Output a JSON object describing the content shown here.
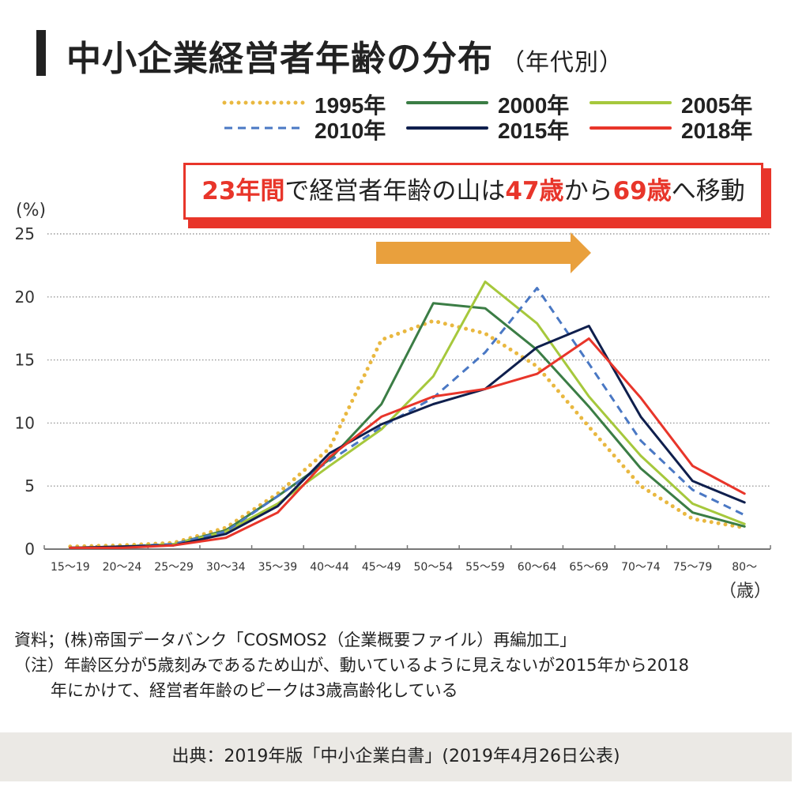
{
  "header": {
    "title": "中小企業経営者年齢の分布",
    "subtitle": "（年代別）"
  },
  "callout": {
    "parts": [
      {
        "text": "23年間",
        "highlight": true
      },
      {
        "text": "で経営者年齢の山は",
        "highlight": false
      },
      {
        "text": "47歳",
        "highlight": true
      },
      {
        "text": "から",
        "highlight": false
      },
      {
        "text": "69歳",
        "highlight": true
      },
      {
        "text": "へ移動",
        "highlight": false
      }
    ],
    "arrow_icon": "right-arrow-icon",
    "arrow_color": "#e9a03d",
    "border_color": "#e8352a"
  },
  "notes": {
    "source_line": "資料；(株)帝国データバンク「COSMOS2（企業概要ファイル）再編加工」",
    "note_line1": "（注）年齢区分が5歳刻みであるため山が、動いているように見えないが2015年から2018",
    "note_line2": "年にかけて、経営者年齢のピークは3歳高齢化している"
  },
  "footer": {
    "citation": "出典：2019年版「中小企業白書」(2019年4月26日公表)"
  },
  "chart_data": {
    "type": "line",
    "title": "中小企業経営者年齢の分布（年代別）",
    "xlabel": "（歳）",
    "ylabel": "(%)",
    "ylim": [
      0,
      25
    ],
    "yticks": [
      0,
      5,
      10,
      15,
      20,
      25
    ],
    "grid": true,
    "legend_position": "top-right",
    "categories": [
      "15～19",
      "20～24",
      "25～29",
      "30～34",
      "35～39",
      "40～44",
      "45～49",
      "50～54",
      "55～59",
      "60～64",
      "65～69",
      "70～74",
      "75～79",
      "80～"
    ],
    "series": [
      {
        "name": "1995年",
        "color": "#e9b840",
        "style": "dotted",
        "values": [
          0.2,
          0.3,
          0.5,
          1.7,
          4.4,
          8.0,
          16.6,
          18.1,
          17.1,
          14.5,
          9.7,
          5.0,
          2.4,
          1.7
        ]
      },
      {
        "name": "2000年",
        "color": "#3b7d45",
        "style": "solid",
        "values": [
          0.1,
          0.2,
          0.4,
          1.5,
          4.2,
          7.1,
          11.5,
          19.5,
          19.1,
          15.8,
          11.3,
          6.4,
          2.9,
          1.8
        ]
      },
      {
        "name": "2005年",
        "color": "#a6c83c",
        "style": "solid",
        "values": [
          0.1,
          0.2,
          0.4,
          1.4,
          3.6,
          6.6,
          9.5,
          13.7,
          21.2,
          17.9,
          12.1,
          7.4,
          3.6,
          2.0
        ]
      },
      {
        "name": "2010年",
        "color": "#4a78c4",
        "style": "dashed",
        "values": [
          0.1,
          0.2,
          0.4,
          1.4,
          4.2,
          7.0,
          9.7,
          12.0,
          15.6,
          20.7,
          14.7,
          8.6,
          4.7,
          2.7
        ]
      },
      {
        "name": "2015年",
        "color": "#0f1f4d",
        "style": "solid",
        "values": [
          0.1,
          0.2,
          0.3,
          1.2,
          3.4,
          7.6,
          9.9,
          11.5,
          12.7,
          16.0,
          17.7,
          10.5,
          5.4,
          3.7
        ]
      },
      {
        "name": "2018年",
        "color": "#e8352a",
        "style": "solid",
        "values": [
          0.1,
          0.1,
          0.3,
          0.9,
          2.9,
          7.3,
          10.5,
          12.1,
          12.7,
          13.9,
          16.7,
          12.0,
          6.6,
          4.4
        ]
      }
    ]
  }
}
